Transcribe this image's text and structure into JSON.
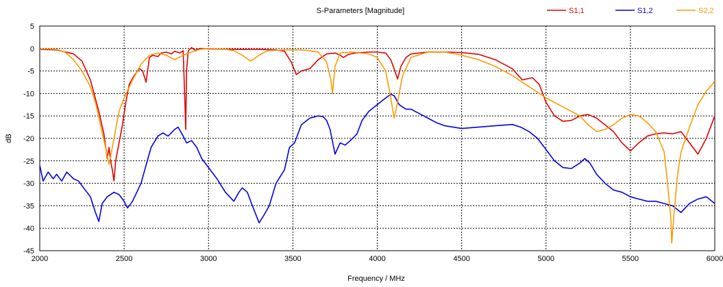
{
  "chart_data": {
    "type": "line",
    "title": "S-Parameters [Magnitude]",
    "xlabel": "Frequency / MHz",
    "ylabel": "dB",
    "xlim": [
      2000,
      6000
    ],
    "ylim": [
      -45,
      5
    ],
    "xticks": [
      2000,
      2500,
      3000,
      3500,
      4000,
      4500,
      5000,
      5500,
      6000
    ],
    "yticks": [
      5,
      0,
      -5,
      -10,
      -15,
      -20,
      -25,
      -30,
      -35,
      -40,
      -45
    ],
    "xtick_labels": [
      "2000",
      "2500",
      "3000",
      "3500",
      "4000",
      "4500",
      "5000",
      "5500",
      "6000"
    ],
    "ytick_labels": [
      "5",
      "0",
      "-5",
      "-10",
      "-15",
      "-20",
      "-25",
      "-30",
      "-35",
      "-40",
      "-45"
    ],
    "grid": true,
    "legend_position": "top-right",
    "series": [
      {
        "name": "S1,1",
        "color": "#e00000",
        "points": [
          [
            2000,
            -0.2
          ],
          [
            2100,
            -0.3
          ],
          [
            2200,
            -1.2
          ],
          [
            2250,
            -2.8
          ],
          [
            2300,
            -7
          ],
          [
            2350,
            -14
          ],
          [
            2380,
            -19
          ],
          [
            2400,
            -24.5
          ],
          [
            2410,
            -22
          ],
          [
            2420,
            -25
          ],
          [
            2430,
            -27
          ],
          [
            2440,
            -29.5
          ],
          [
            2450,
            -25
          ],
          [
            2470,
            -21
          ],
          [
            2490,
            -17
          ],
          [
            2510,
            -12
          ],
          [
            2530,
            -8
          ],
          [
            2560,
            -6
          ],
          [
            2590,
            -4.5
          ],
          [
            2610,
            -5
          ],
          [
            2630,
            -7.5
          ],
          [
            2650,
            -2
          ],
          [
            2670,
            -1.5
          ],
          [
            2700,
            -1.8
          ],
          [
            2720,
            -1
          ],
          [
            2750,
            -0.8
          ],
          [
            2780,
            -1.2
          ],
          [
            2800,
            -0.6
          ],
          [
            2830,
            -1
          ],
          [
            2850,
            -0.5
          ],
          [
            2860,
            -12
          ],
          [
            2865,
            -18
          ],
          [
            2870,
            -5
          ],
          [
            2880,
            -0.5
          ],
          [
            2900,
            0.2
          ],
          [
            2920,
            -0.4
          ],
          [
            2950,
            0
          ],
          [
            3000,
            -0.1
          ],
          [
            3100,
            -0.2
          ],
          [
            3200,
            -0.2
          ],
          [
            3300,
            -0.2
          ],
          [
            3400,
            -0.3
          ],
          [
            3450,
            -0.6
          ],
          [
            3490,
            -3
          ],
          [
            3520,
            -5.8
          ],
          [
            3550,
            -5
          ],
          [
            3600,
            -4.5
          ],
          [
            3650,
            -2.5
          ],
          [
            3700,
            -1.2
          ],
          [
            3750,
            -1
          ],
          [
            3780,
            -1.5
          ],
          [
            3800,
            -2
          ],
          [
            3830,
            -1.3
          ],
          [
            3870,
            -1
          ],
          [
            3950,
            -0.8
          ],
          [
            4000,
            -0.8
          ],
          [
            4050,
            -1
          ],
          [
            4080,
            -2.5
          ],
          [
            4100,
            -4.5
          ],
          [
            4120,
            -6.8
          ],
          [
            4140,
            -4
          ],
          [
            4170,
            -2
          ],
          [
            4200,
            -1.2
          ],
          [
            4300,
            -0.8
          ],
          [
            4400,
            -0.8
          ],
          [
            4500,
            -0.9
          ],
          [
            4600,
            -1.3
          ],
          [
            4700,
            -2.5
          ],
          [
            4800,
            -4.5
          ],
          [
            4860,
            -7
          ],
          [
            4920,
            -6.5
          ],
          [
            4960,
            -8
          ],
          [
            5000,
            -12
          ],
          [
            5050,
            -15
          ],
          [
            5100,
            -16.2
          ],
          [
            5150,
            -16
          ],
          [
            5200,
            -15
          ],
          [
            5250,
            -14.7
          ],
          [
            5300,
            -15.5
          ],
          [
            5400,
            -18.5
          ],
          [
            5450,
            -21
          ],
          [
            5500,
            -22.8
          ],
          [
            5550,
            -21
          ],
          [
            5600,
            -19.5
          ],
          [
            5650,
            -19
          ],
          [
            5700,
            -18.8
          ],
          [
            5750,
            -19
          ],
          [
            5800,
            -18.5
          ],
          [
            5850,
            -21
          ],
          [
            5900,
            -23.5
          ],
          [
            5950,
            -20
          ],
          [
            6000,
            -15
          ]
        ]
      },
      {
        "name": "S1,2",
        "color": "#0000e0",
        "points": [
          [
            2000,
            -26
          ],
          [
            2020,
            -29.5
          ],
          [
            2050,
            -27.5
          ],
          [
            2080,
            -29
          ],
          [
            2100,
            -28
          ],
          [
            2130,
            -29.5
          ],
          [
            2160,
            -27.5
          ],
          [
            2200,
            -29
          ],
          [
            2230,
            -29.5
          ],
          [
            2260,
            -31
          ],
          [
            2300,
            -33
          ],
          [
            2330,
            -36.5
          ],
          [
            2350,
            -38.5
          ],
          [
            2370,
            -34.5
          ],
          [
            2400,
            -33
          ],
          [
            2440,
            -32
          ],
          [
            2470,
            -32.5
          ],
          [
            2500,
            -34
          ],
          [
            2520,
            -35.5
          ],
          [
            2550,
            -34
          ],
          [
            2600,
            -30
          ],
          [
            2630,
            -26
          ],
          [
            2660,
            -22
          ],
          [
            2700,
            -19.5
          ],
          [
            2730,
            -18.8
          ],
          [
            2760,
            -19.5
          ],
          [
            2800,
            -18
          ],
          [
            2820,
            -17.5
          ],
          [
            2850,
            -19.5
          ],
          [
            2870,
            -21
          ],
          [
            2900,
            -20.5
          ],
          [
            2930,
            -22
          ],
          [
            2960,
            -24.5
          ],
          [
            3000,
            -26.5
          ],
          [
            3050,
            -29
          ],
          [
            3100,
            -32
          ],
          [
            3150,
            -34
          ],
          [
            3180,
            -32
          ],
          [
            3200,
            -31
          ],
          [
            3230,
            -32
          ],
          [
            3260,
            -35
          ],
          [
            3300,
            -38.8
          ],
          [
            3330,
            -37
          ],
          [
            3360,
            -35
          ],
          [
            3400,
            -30
          ],
          [
            3450,
            -27
          ],
          [
            3480,
            -22
          ],
          [
            3510,
            -21
          ],
          [
            3550,
            -17
          ],
          [
            3600,
            -15.5
          ],
          [
            3650,
            -15
          ],
          [
            3680,
            -15.2
          ],
          [
            3700,
            -16
          ],
          [
            3720,
            -18
          ],
          [
            3750,
            -23.5
          ],
          [
            3780,
            -21
          ],
          [
            3810,
            -21.5
          ],
          [
            3840,
            -20.5
          ],
          [
            3880,
            -19
          ],
          [
            3910,
            -16
          ],
          [
            3950,
            -14
          ],
          [
            4000,
            -12.5
          ],
          [
            4050,
            -11
          ],
          [
            4080,
            -10.2
          ],
          [
            4100,
            -10.5
          ],
          [
            4130,
            -12.5
          ],
          [
            4170,
            -13.5
          ],
          [
            4200,
            -13.5
          ],
          [
            4250,
            -14.5
          ],
          [
            4300,
            -15.5
          ],
          [
            4350,
            -16.5
          ],
          [
            4400,
            -17.2
          ],
          [
            4500,
            -17.8
          ],
          [
            4600,
            -17.5
          ],
          [
            4700,
            -17.2
          ],
          [
            4800,
            -16.9
          ],
          [
            4850,
            -17.5
          ],
          [
            4900,
            -18.5
          ],
          [
            4950,
            -20
          ],
          [
            5000,
            -22.5
          ],
          [
            5050,
            -25
          ],
          [
            5100,
            -26.5
          ],
          [
            5150,
            -26.7
          ],
          [
            5200,
            -25.5
          ],
          [
            5230,
            -24.5
          ],
          [
            5260,
            -25.5
          ],
          [
            5300,
            -28
          ],
          [
            5350,
            -30
          ],
          [
            5400,
            -31.5
          ],
          [
            5450,
            -32
          ],
          [
            5500,
            -33
          ],
          [
            5550,
            -33.5
          ],
          [
            5600,
            -34
          ],
          [
            5650,
            -34
          ],
          [
            5700,
            -34.5
          ],
          [
            5750,
            -35
          ],
          [
            5800,
            -36.5
          ],
          [
            5850,
            -34.5
          ],
          [
            5900,
            -33.5
          ],
          [
            5950,
            -33
          ],
          [
            6000,
            -34.5
          ]
        ]
      },
      {
        "name": "S2,2",
        "color": "#ff9900",
        "points": [
          [
            2000,
            -0.1
          ],
          [
            2050,
            -0.1
          ],
          [
            2100,
            -0.2
          ],
          [
            2150,
            -0.8
          ],
          [
            2200,
            -2.5
          ],
          [
            2250,
            -5
          ],
          [
            2300,
            -8.5
          ],
          [
            2330,
            -12
          ],
          [
            2360,
            -17
          ],
          [
            2390,
            -22
          ],
          [
            2410,
            -25.8
          ],
          [
            2430,
            -22
          ],
          [
            2450,
            -18
          ],
          [
            2470,
            -14
          ],
          [
            2500,
            -11
          ],
          [
            2550,
            -7
          ],
          [
            2600,
            -3.5
          ],
          [
            2650,
            -1.5
          ],
          [
            2700,
            -1
          ],
          [
            2750,
            -1.5
          ],
          [
            2800,
            -2.5
          ],
          [
            2850,
            -1.5
          ],
          [
            2900,
            -0.8
          ],
          [
            2950,
            -0.2
          ],
          [
            3000,
            0
          ],
          [
            3100,
            -0.2
          ],
          [
            3150,
            -0.5
          ],
          [
            3200,
            -1.5
          ],
          [
            3250,
            -2.8
          ],
          [
            3300,
            -1.5
          ],
          [
            3350,
            -0.5
          ],
          [
            3450,
            -0.3
          ],
          [
            3550,
            -0.3
          ],
          [
            3600,
            -0.5
          ],
          [
            3650,
            -0.8
          ],
          [
            3700,
            -3
          ],
          [
            3725,
            -7
          ],
          [
            3735,
            -10
          ],
          [
            3750,
            -4
          ],
          [
            3780,
            -1
          ],
          [
            3850,
            -0.8
          ],
          [
            3950,
            -1.2
          ],
          [
            4000,
            -2
          ],
          [
            4050,
            -5
          ],
          [
            4080,
            -11
          ],
          [
            4100,
            -15.5
          ],
          [
            4120,
            -12
          ],
          [
            4150,
            -6
          ],
          [
            4200,
            -2
          ],
          [
            4300,
            -0.8
          ],
          [
            4400,
            -0.8
          ],
          [
            4500,
            -1.5
          ],
          [
            4600,
            -2.5
          ],
          [
            4700,
            -4
          ],
          [
            4800,
            -6
          ],
          [
            4900,
            -8.5
          ],
          [
            5000,
            -11
          ],
          [
            5100,
            -13
          ],
          [
            5150,
            -14
          ],
          [
            5200,
            -15
          ],
          [
            5250,
            -17
          ],
          [
            5300,
            -18.5
          ],
          [
            5350,
            -18
          ],
          [
            5400,
            -17
          ],
          [
            5450,
            -15.5
          ],
          [
            5500,
            -14.7
          ],
          [
            5550,
            -15
          ],
          [
            5600,
            -16.5
          ],
          [
            5650,
            -18.5
          ],
          [
            5700,
            -23
          ],
          [
            5720,
            -30
          ],
          [
            5740,
            -38
          ],
          [
            5745,
            -43.3
          ],
          [
            5760,
            -36
          ],
          [
            5780,
            -28
          ],
          [
            5800,
            -23
          ],
          [
            5850,
            -17.5
          ],
          [
            5900,
            -12.5
          ],
          [
            5950,
            -9.5
          ],
          [
            6000,
            -7.3
          ]
        ]
      }
    ]
  }
}
